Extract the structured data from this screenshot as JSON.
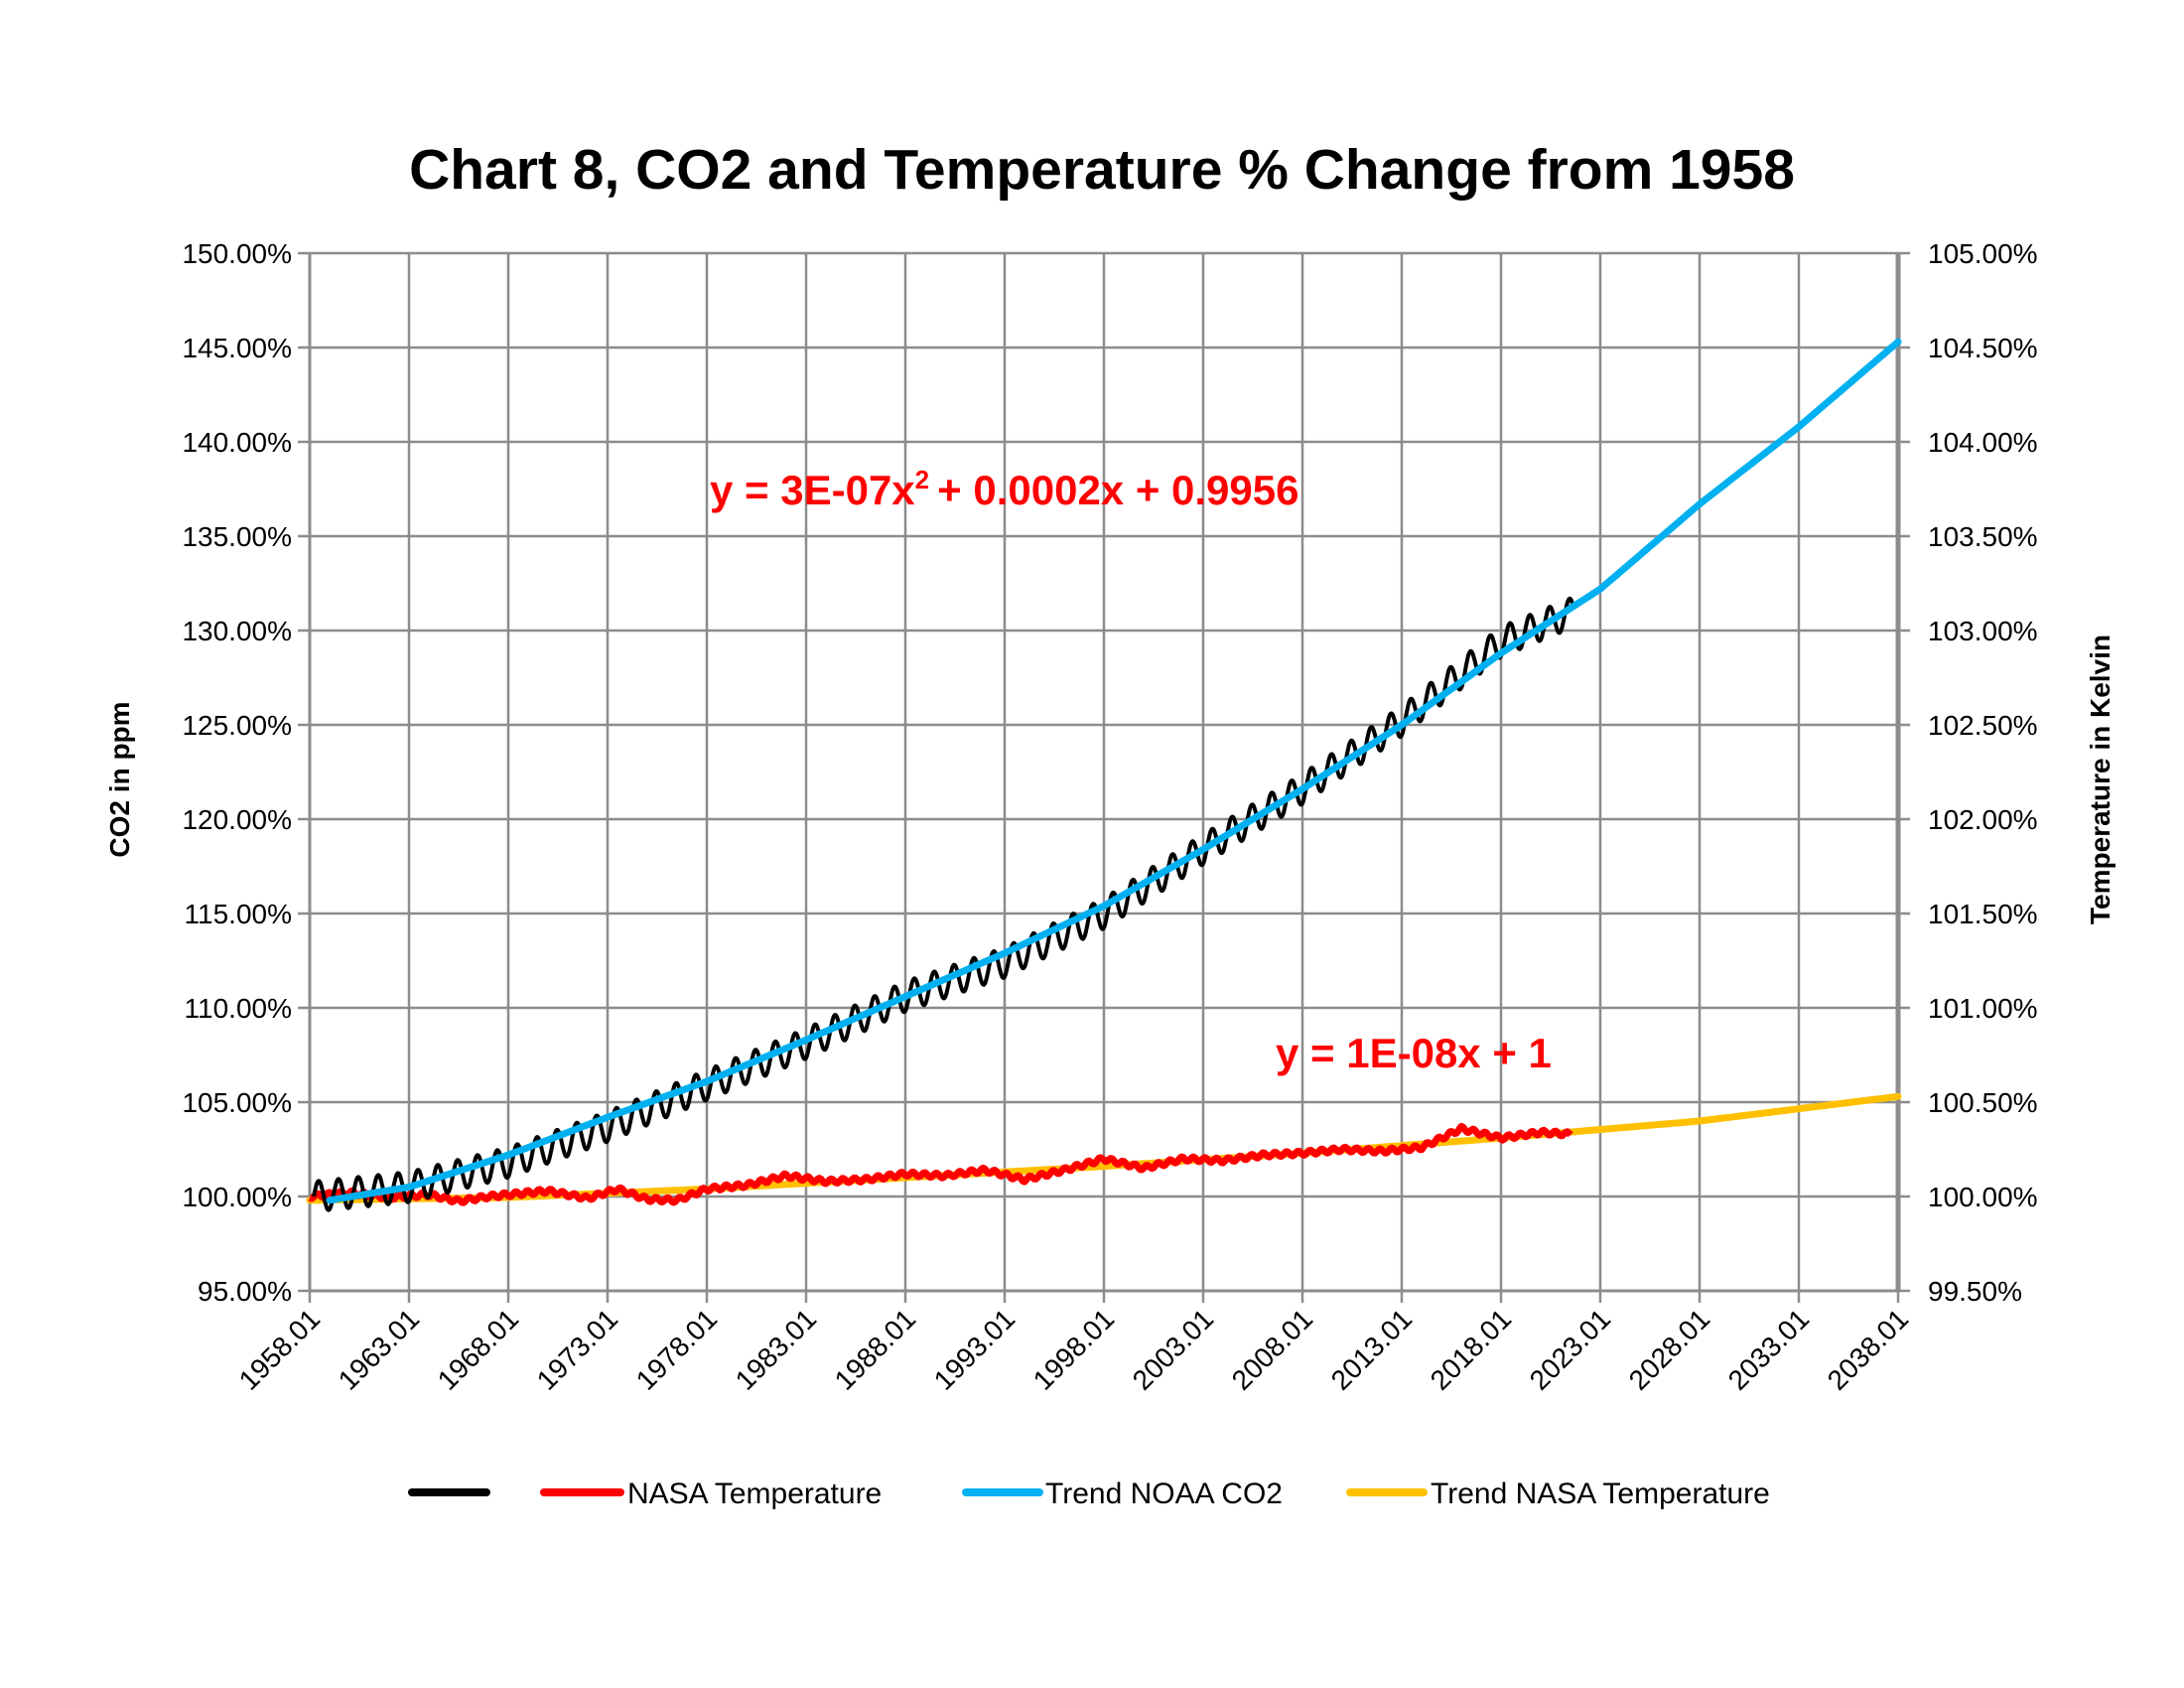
{
  "chart_data": {
    "type": "line",
    "title": "Chart 8, CO2 and Temperature % Change from 1958",
    "ylabel": "CO2 in ppm",
    "y2label": "Temperature in Kelvin",
    "xlabel": "",
    "x_tick_labels": [
      "1958.01",
      "1963.01",
      "1968.01",
      "1973.01",
      "1978.01",
      "1983.01",
      "1988.01",
      "1993.01",
      "1998.01",
      "2003.01",
      "2008.01",
      "2013.01",
      "2018.01",
      "2023.01",
      "2028.01",
      "2033.01",
      "2038.01"
    ],
    "xlim": [
      1958.0,
      2038.0
    ],
    "y_tick_labels": [
      "95.00%",
      "100.00%",
      "105.00%",
      "110.00%",
      "115.00%",
      "120.00%",
      "125.00%",
      "130.00%",
      "135.00%",
      "140.00%",
      "145.00%",
      "150.00%"
    ],
    "ylim": [
      0.95,
      1.5
    ],
    "y2_tick_labels": [
      "99.50%",
      "100.00%",
      "100.50%",
      "101.00%",
      "101.50%",
      "102.00%",
      "102.50%",
      "103.00%",
      "103.50%",
      "104.00%",
      "104.50%",
      "105.00%"
    ],
    "y2lim": [
      0.995,
      1.05
    ],
    "grid": true,
    "legend_position": "bottom",
    "legend": [
      {
        "label": "",
        "color": "#000000"
      },
      {
        "label": "NASA Temperature",
        "color": "#ff0000"
      },
      {
        "label": "Trend NOAA CO2",
        "color": "#00b0f0"
      },
      {
        "label": "Trend NASA Temperature",
        "color": "#ffc000"
      }
    ],
    "annotations": {
      "co2_equation": "y = 3E-07x",
      "co2_equation_sup": "2",
      "co2_equation_rest": "+ 0.0002x + 0.9956",
      "temp_equation": "y = 1E-08x + 1"
    },
    "series": [
      {
        "axis": "left",
        "color": "#000000",
        "seasonal_amplitude": 0.008,
        "x": [
          1958.2,
          1963,
          1968,
          1973,
          1978,
          1983,
          1988,
          1993,
          1998,
          2003,
          2008,
          2013,
          2018,
          2021.7
        ],
        "y": [
          1.0,
          1.005,
          1.018,
          1.037,
          1.059,
          1.081,
          1.106,
          1.124,
          1.15,
          1.184,
          1.216,
          1.252,
          1.294,
          1.31
        ]
      },
      {
        "name": "NASA Temperature",
        "axis": "right",
        "color": "#ff0000",
        "x": [
          1958.0,
          1960.0,
          1962.0,
          1964.0,
          1965.5,
          1967.0,
          1970.0,
          1972.0,
          1973.5,
          1975.0,
          1976.5,
          1978.0,
          1980.0,
          1982.0,
          1984.0,
          1986.0,
          1988.0,
          1990.0,
          1992.0,
          1994.0,
          1996.0,
          1998.0,
          2000.0,
          2002.0,
          2004.0,
          2006.0,
          2008.0,
          2010.0,
          2012.0,
          2014.0,
          2016.0,
          2018.0,
          2020.0,
          2021.5
        ],
        "y": [
          1.0,
          1.0002,
          0.99995,
          1.0001,
          0.99975,
          1.0,
          1.0003,
          0.9999,
          1.0004,
          0.99985,
          0.9998,
          1.0004,
          1.0006,
          1.0011,
          1.0008,
          1.0009,
          1.0012,
          1.0011,
          1.0014,
          1.0009,
          1.0014,
          1.002,
          1.0015,
          1.002,
          1.0019,
          1.0022,
          1.0023,
          1.0025,
          1.0024,
          1.0026,
          1.0036,
          1.0031,
          1.0034,
          1.0033
        ]
      },
      {
        "name": "Trend NOAA CO2",
        "axis": "left",
        "color": "#00b0f0",
        "x": [
          1959,
          1963,
          1968,
          1973,
          1978,
          1983,
          1988,
          1993,
          1998,
          2003,
          2008,
          2013,
          2018,
          2023,
          2028,
          2033,
          2038
        ],
        "y": [
          0.998,
          1.005,
          1.022,
          1.042,
          1.061,
          1.083,
          1.106,
          1.129,
          1.154,
          1.184,
          1.216,
          1.25,
          1.288,
          1.322,
          1.367,
          1.408,
          1.453
        ]
      },
      {
        "name": "Trend NASA Temperature",
        "axis": "right",
        "color": "#ffc000",
        "x": [
          1958,
          1968,
          1978,
          1988,
          1998,
          2008,
          2018,
          2028,
          2038
        ],
        "y": [
          0.9998,
          0.99995,
          1.0004,
          1.001,
          1.0016,
          1.0023,
          1.0031,
          1.004,
          1.0053
        ]
      }
    ]
  }
}
